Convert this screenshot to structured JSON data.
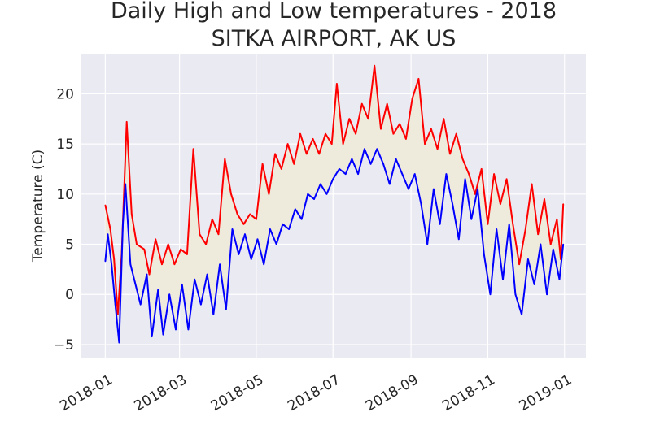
{
  "chart_data": {
    "type": "line",
    "title": "Daily High and Low temperatures - 2018",
    "subtitle": "SITKA AIRPORT, AK US",
    "xlabel": "",
    "ylabel": "Temperature (C)",
    "x_ticks": [
      "2018-01",
      "2018-03",
      "2018-05",
      "2018-07",
      "2018-09",
      "2018-11",
      "2019-01"
    ],
    "y_ticks": [
      -5,
      0,
      5,
      10,
      15,
      20
    ],
    "xlim": [
      "2017-12-13",
      "2019-01-18"
    ],
    "ylim": [
      -6.3,
      24
    ],
    "grid": true,
    "fill_between": true,
    "series": [
      {
        "color": "#ff0000",
        "points": [
          [
            "2018-01-01",
            8.9
          ],
          [
            "2018-01-05",
            6.5
          ],
          [
            "2018-01-08",
            3.5
          ],
          [
            "2018-01-11",
            -2.0
          ],
          [
            "2018-01-14",
            4.0
          ],
          [
            "2018-01-18",
            17.2
          ],
          [
            "2018-01-22",
            8.0
          ],
          [
            "2018-01-26",
            5.0
          ],
          [
            "2018-02-01",
            4.5
          ],
          [
            "2018-02-05",
            2.0
          ],
          [
            "2018-02-10",
            5.5
          ],
          [
            "2018-02-15",
            3.0
          ],
          [
            "2018-02-20",
            5.0
          ],
          [
            "2018-02-25",
            3.0
          ],
          [
            "2018-03-02",
            4.5
          ],
          [
            "2018-03-07",
            4.0
          ],
          [
            "2018-03-12",
            14.5
          ],
          [
            "2018-03-17",
            6.0
          ],
          [
            "2018-03-22",
            5.0
          ],
          [
            "2018-03-27",
            7.5
          ],
          [
            "2018-04-01",
            6.0
          ],
          [
            "2018-04-06",
            13.5
          ],
          [
            "2018-04-11",
            10.0
          ],
          [
            "2018-04-16",
            8.0
          ],
          [
            "2018-04-21",
            7.0
          ],
          [
            "2018-04-26",
            8.0
          ],
          [
            "2018-05-01",
            7.5
          ],
          [
            "2018-05-06",
            13.0
          ],
          [
            "2018-05-11",
            10.0
          ],
          [
            "2018-05-16",
            14.0
          ],
          [
            "2018-05-21",
            12.5
          ],
          [
            "2018-05-26",
            15.0
          ],
          [
            "2018-05-31",
            13.0
          ],
          [
            "2018-06-05",
            16.0
          ],
          [
            "2018-06-10",
            14.0
          ],
          [
            "2018-06-15",
            15.5
          ],
          [
            "2018-06-20",
            14.0
          ],
          [
            "2018-06-25",
            16.0
          ],
          [
            "2018-06-30",
            15.0
          ],
          [
            "2018-07-04",
            21.0
          ],
          [
            "2018-07-09",
            15.0
          ],
          [
            "2018-07-14",
            17.5
          ],
          [
            "2018-07-19",
            16.0
          ],
          [
            "2018-07-24",
            19.0
          ],
          [
            "2018-07-29",
            17.5
          ],
          [
            "2018-08-03",
            22.8
          ],
          [
            "2018-08-08",
            16.5
          ],
          [
            "2018-08-13",
            19.0
          ],
          [
            "2018-08-18",
            16.0
          ],
          [
            "2018-08-23",
            17.0
          ],
          [
            "2018-08-28",
            15.5
          ],
          [
            "2018-09-02",
            19.5
          ],
          [
            "2018-09-07",
            21.5
          ],
          [
            "2018-09-12",
            15.0
          ],
          [
            "2018-09-17",
            16.5
          ],
          [
            "2018-09-22",
            14.5
          ],
          [
            "2018-09-27",
            17.5
          ],
          [
            "2018-10-02",
            14.0
          ],
          [
            "2018-10-07",
            16.0
          ],
          [
            "2018-10-12",
            13.5
          ],
          [
            "2018-10-17",
            12.0
          ],
          [
            "2018-10-22",
            10.0
          ],
          [
            "2018-10-27",
            12.5
          ],
          [
            "2018-11-01",
            7.0
          ],
          [
            "2018-11-06",
            12.0
          ],
          [
            "2018-11-11",
            9.0
          ],
          [
            "2018-11-16",
            11.5
          ],
          [
            "2018-11-21",
            7.0
          ],
          [
            "2018-11-26",
            3.0
          ],
          [
            "2018-12-01",
            6.5
          ],
          [
            "2018-12-06",
            11.0
          ],
          [
            "2018-12-11",
            6.0
          ],
          [
            "2018-12-16",
            9.5
          ],
          [
            "2018-12-21",
            5.0
          ],
          [
            "2018-12-26",
            7.5
          ],
          [
            "2018-12-29",
            3.5
          ],
          [
            "2018-12-31",
            9.0
          ]
        ]
      },
      {
        "color": "#0000ff",
        "points": [
          [
            "2018-01-01",
            3.3
          ],
          [
            "2018-01-03",
            6.0
          ],
          [
            "2018-01-06",
            3.0
          ],
          [
            "2018-01-09",
            -1.0
          ],
          [
            "2018-01-12",
            -4.8
          ],
          [
            "2018-01-15",
            7.0
          ],
          [
            "2018-01-17",
            11.0
          ],
          [
            "2018-01-21",
            3.0
          ],
          [
            "2018-01-25",
            1.0
          ],
          [
            "2018-01-29",
            -1.0
          ],
          [
            "2018-02-03",
            2.0
          ],
          [
            "2018-02-07",
            -4.2
          ],
          [
            "2018-02-12",
            0.5
          ],
          [
            "2018-02-16",
            -4.0
          ],
          [
            "2018-02-21",
            0.0
          ],
          [
            "2018-02-26",
            -3.5
          ],
          [
            "2018-03-03",
            1.0
          ],
          [
            "2018-03-08",
            -3.5
          ],
          [
            "2018-03-13",
            1.5
          ],
          [
            "2018-03-18",
            -1.0
          ],
          [
            "2018-03-23",
            2.0
          ],
          [
            "2018-03-28",
            -2.0
          ],
          [
            "2018-04-02",
            3.0
          ],
          [
            "2018-04-07",
            -1.5
          ],
          [
            "2018-04-12",
            6.5
          ],
          [
            "2018-04-17",
            4.0
          ],
          [
            "2018-04-22",
            6.0
          ],
          [
            "2018-04-27",
            3.5
          ],
          [
            "2018-05-02",
            5.5
          ],
          [
            "2018-05-07",
            3.0
          ],
          [
            "2018-05-12",
            6.5
          ],
          [
            "2018-05-17",
            5.0
          ],
          [
            "2018-05-22",
            7.0
          ],
          [
            "2018-05-27",
            6.5
          ],
          [
            "2018-06-01",
            8.5
          ],
          [
            "2018-06-06",
            7.5
          ],
          [
            "2018-06-11",
            10.0
          ],
          [
            "2018-06-16",
            9.5
          ],
          [
            "2018-06-21",
            11.0
          ],
          [
            "2018-06-26",
            10.0
          ],
          [
            "2018-07-01",
            11.5
          ],
          [
            "2018-07-06",
            12.5
          ],
          [
            "2018-07-11",
            12.0
          ],
          [
            "2018-07-16",
            13.5
          ],
          [
            "2018-07-21",
            12.0
          ],
          [
            "2018-07-26",
            14.5
          ],
          [
            "2018-07-31",
            13.0
          ],
          [
            "2018-08-05",
            14.5
          ],
          [
            "2018-08-10",
            13.0
          ],
          [
            "2018-08-15",
            11.0
          ],
          [
            "2018-08-20",
            13.5
          ],
          [
            "2018-08-25",
            12.0
          ],
          [
            "2018-08-30",
            10.5
          ],
          [
            "2018-09-04",
            12.0
          ],
          [
            "2018-09-09",
            9.0
          ],
          [
            "2018-09-14",
            5.0
          ],
          [
            "2018-09-19",
            10.5
          ],
          [
            "2018-09-24",
            7.0
          ],
          [
            "2018-09-29",
            12.0
          ],
          [
            "2018-10-04",
            9.0
          ],
          [
            "2018-10-09",
            5.5
          ],
          [
            "2018-10-14",
            11.5
          ],
          [
            "2018-10-19",
            7.5
          ],
          [
            "2018-10-24",
            10.5
          ],
          [
            "2018-10-29",
            4.0
          ],
          [
            "2018-11-03",
            0.0
          ],
          [
            "2018-11-08",
            6.5
          ],
          [
            "2018-11-13",
            1.5
          ],
          [
            "2018-11-18",
            7.0
          ],
          [
            "2018-11-23",
            0.0
          ],
          [
            "2018-11-28",
            -2.0
          ],
          [
            "2018-12-03",
            3.5
          ],
          [
            "2018-12-08",
            1.0
          ],
          [
            "2018-12-13",
            5.0
          ],
          [
            "2018-12-18",
            0.0
          ],
          [
            "2018-12-23",
            4.5
          ],
          [
            "2018-12-28",
            1.5
          ],
          [
            "2018-12-31",
            5.0
          ]
        ]
      }
    ],
    "fill_color": "#eeeadc",
    "background_color": "#eaeaf2",
    "grid_color": "#ffffff"
  }
}
